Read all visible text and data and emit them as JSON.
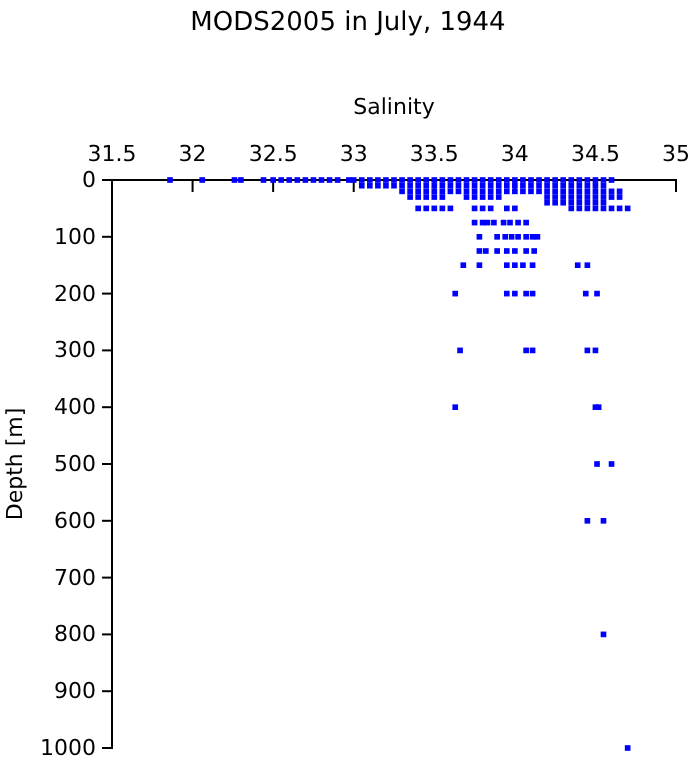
{
  "chart_data": {
    "type": "scatter",
    "title": "MODS2005 in July, 1944",
    "xlabel": "Salinity",
    "ylabel": "Depth [m]",
    "xlim": [
      31.5,
      35
    ],
    "xticks": [
      31.5,
      32,
      32.5,
      33,
      33.5,
      34,
      34.5,
      35
    ],
    "ylim": [
      1000,
      0
    ],
    "yticks": [
      0,
      100,
      200,
      300,
      400,
      500,
      600,
      700,
      800,
      900,
      1000
    ],
    "marker": "square",
    "series": [
      {
        "color": "#0000ff",
        "x": [
          31.86,
          32.06,
          32.26,
          32.3,
          32.44,
          32.5,
          32.55,
          32.6,
          32.65,
          32.7,
          32.75,
          32.8,
          32.85,
          32.9,
          32.97,
          33.0,
          33.05,
          33.1,
          33.15,
          33.2,
          33.25,
          33.3,
          33.35,
          33.4,
          33.45,
          33.5,
          33.55,
          33.6,
          33.65,
          33.7,
          33.75,
          33.8,
          33.85,
          33.9,
          33.95,
          34.0,
          34.05,
          34.1,
          34.15,
          34.2,
          34.25,
          34.3,
          34.35,
          34.4,
          34.45,
          34.5,
          34.55,
          34.6
        ],
        "values": [
          0,
          0,
          0,
          0,
          0,
          0,
          0,
          0,
          0,
          0,
          0,
          0,
          0,
          0,
          0,
          0,
          0,
          0,
          0,
          0,
          0,
          0,
          0,
          0,
          0,
          0,
          0,
          0,
          0,
          0,
          0,
          0,
          0,
          0,
          0,
          0,
          0,
          0,
          0,
          0,
          0,
          0,
          0,
          0,
          0,
          0,
          0,
          0
        ]
      },
      {
        "color": "#0000ff",
        "x": [
          33.05,
          33.1,
          33.15,
          33.2,
          33.25,
          33.3,
          33.35,
          33.4,
          33.45,
          33.5,
          33.55,
          33.6,
          33.65,
          33.7,
          33.75,
          33.8,
          33.85,
          33.9,
          33.95,
          34.0,
          34.05,
          34.1,
          34.15,
          34.2,
          34.25,
          34.3,
          34.35,
          34.4,
          34.45,
          34.5,
          34.55
        ],
        "values": [
          10,
          10,
          10,
          10,
          10,
          10,
          10,
          10,
          10,
          10,
          10,
          10,
          10,
          10,
          10,
          10,
          10,
          10,
          10,
          10,
          10,
          10,
          10,
          10,
          10,
          10,
          10,
          10,
          10,
          10,
          10
        ]
      },
      {
        "color": "#0000ff",
        "x": [
          33.3,
          33.35,
          33.4,
          33.45,
          33.5,
          33.55,
          33.6,
          33.65,
          33.7,
          33.75,
          33.8,
          33.85,
          33.9,
          33.95,
          34.0,
          34.05,
          34.1,
          34.15,
          34.2,
          34.25,
          34.3,
          34.35,
          34.4,
          34.45,
          34.5,
          34.55,
          34.6,
          34.65
        ],
        "values": [
          20,
          20,
          20,
          20,
          20,
          20,
          20,
          20,
          20,
          20,
          20,
          20,
          20,
          20,
          20,
          20,
          20,
          20,
          20,
          20,
          20,
          20,
          20,
          20,
          20,
          20,
          20,
          20
        ]
      },
      {
        "color": "#0000ff",
        "x": [
          33.35,
          33.4,
          33.45,
          33.5,
          33.55,
          33.7,
          33.75,
          33.8,
          33.85,
          33.9,
          34.2,
          34.25,
          34.3,
          34.35,
          34.4,
          34.45,
          34.5,
          34.55,
          34.6,
          34.65
        ],
        "values": [
          30,
          30,
          30,
          30,
          30,
          30,
          30,
          30,
          30,
          30,
          30,
          30,
          30,
          30,
          30,
          30,
          30,
          30,
          30,
          30
        ]
      },
      {
        "color": "#0000ff",
        "x": [
          34.2,
          34.25,
          34.3,
          34.35,
          34.4,
          34.45,
          34.5,
          34.55
        ],
        "values": [
          40,
          40,
          40,
          40,
          40,
          40,
          40,
          40
        ]
      },
      {
        "color": "#0000ff",
        "x": [
          33.4,
          33.45,
          33.5,
          33.55,
          33.6,
          33.75,
          33.8,
          33.85,
          33.95,
          34.0,
          34.35,
          34.4,
          34.45,
          34.5,
          34.55,
          34.6,
          34.65,
          34.7
        ],
        "values": [
          50,
          50,
          50,
          50,
          50,
          50,
          50,
          50,
          50,
          50,
          50,
          50,
          50,
          50,
          50,
          50,
          50,
          50
        ]
      },
      {
        "color": "#0000ff",
        "x": [
          33.75,
          33.8,
          33.83,
          33.87,
          33.93,
          33.97,
          34.02,
          34.07
        ],
        "values": [
          75,
          75,
          75,
          75,
          75,
          75,
          75,
          75
        ]
      },
      {
        "color": "#0000ff",
        "x": [
          33.78,
          33.89,
          33.94,
          33.98,
          34.02,
          34.07,
          34.11,
          34.14
        ],
        "values": [
          100,
          100,
          100,
          100,
          100,
          100,
          100,
          100
        ]
      },
      {
        "color": "#0000ff",
        "x": [
          33.78,
          33.82,
          33.89,
          33.95,
          34.0,
          34.07,
          34.12
        ],
        "values": [
          125,
          125,
          125,
          125,
          125,
          125,
          125
        ]
      },
      {
        "color": "#0000ff",
        "x": [
          33.68,
          33.78,
          33.95,
          34.0,
          34.05,
          34.11,
          34.39,
          34.45
        ],
        "values": [
          150,
          150,
          150,
          150,
          150,
          150,
          150,
          150
        ]
      },
      {
        "color": "#0000ff",
        "x": [
          33.63,
          33.95,
          34.0,
          34.07,
          34.11,
          34.44,
          34.51
        ],
        "values": [
          200,
          200,
          200,
          200,
          200,
          200,
          200
        ]
      },
      {
        "color": "#0000ff",
        "x": [
          33.66,
          34.07,
          34.11,
          34.45,
          34.5
        ],
        "values": [
          300,
          300,
          300,
          300,
          300
        ]
      },
      {
        "color": "#0000ff",
        "x": [
          33.63,
          34.5,
          34.52
        ],
        "values": [
          400,
          400,
          400
        ]
      },
      {
        "color": "#0000ff",
        "x": [
          34.51,
          34.6
        ],
        "values": [
          500,
          500
        ]
      },
      {
        "color": "#0000ff",
        "x": [
          34.45,
          34.55
        ],
        "values": [
          600,
          600
        ]
      },
      {
        "color": "#0000ff",
        "x": [
          34.55
        ],
        "values": [
          800
        ]
      },
      {
        "color": "#0000ff",
        "x": [
          34.7
        ],
        "values": [
          1000
        ]
      }
    ]
  }
}
